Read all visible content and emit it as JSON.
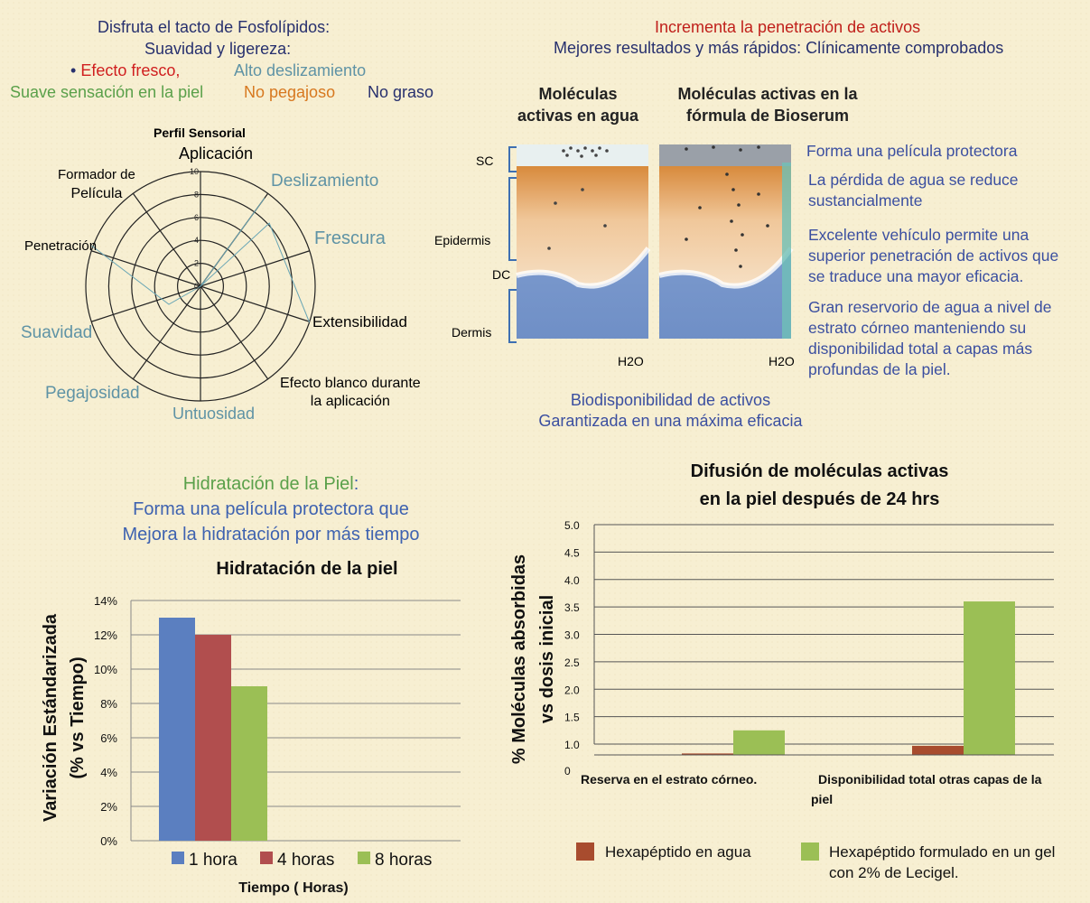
{
  "top_left": {
    "line1": "Disfruta el tacto de Fosfolípidos:",
    "line2": "Suavidad y ligereza:",
    "bullet": "•",
    "efecto": "Efecto  fresco,",
    "alto": "Alto deslizamiento",
    "suave": "Suave sensación en la piel",
    "no_pegajoso": "No pegajoso",
    "no_graso": "No graso"
  },
  "radar": {
    "title": "Perfil Sensorial",
    "ticks": [
      "0",
      "2",
      "4",
      "6",
      "8",
      "10"
    ],
    "axes": {
      "aplicacion": "Aplicación",
      "deslizamiento": "Deslizamiento",
      "frescura": "Frescura",
      "extensibilidad": "Extensibilidad",
      "efecto_blanco": [
        "Efecto blanco durante",
        "la aplicación"
      ],
      "untuosidad": "Untuosidad",
      "pegajosidad": "Pegajosidad",
      "suavidad": "Suavidad",
      "penetracion": "Penetración",
      "formador": [
        "Formador de",
        "Película"
      ]
    },
    "colors": {
      "frescura": "#5f93a5",
      "suavidad": "#5f93a5",
      "pegajosidad": "#5f93a5",
      "untuosidad": "#5f93a5",
      "deslizamiento": "#5f93a5"
    }
  },
  "top_right": {
    "line1": "Incrementa la penetración  de activos",
    "line2": "Mejores resultados y más rápidos:  Clínicamente comprobados",
    "col1": [
      "Moléculas",
      "activas en agua"
    ],
    "col2": [
      "Moléculas activas en la",
      "fórmula de Bioserum"
    ],
    "layer_sc": "SC",
    "layer_epidermis": "Epidermis",
    "layer_dc": "DC",
    "layer_dermis": "Dermis",
    "h2o_1": "H2O",
    "h2o_2": "H2O",
    "benefits": [
      [
        "Forma una película  protectora"
      ],
      [
        "La pérdida de agua se reduce",
        "sustancialmente"
      ],
      [
        "Excelente vehículo  permite una",
        "superior penetración de activos que",
        "se traduce una mayor  eficacia."
      ],
      [
        "Gran reservorio  de agua a nivel de",
        "estrato córneo  manteniendo  su",
        "disponibilidad  total a  capas más",
        "profundas de la piel."
      ]
    ],
    "bio1": "Biodisponibilidad de activos",
    "bio2": "Garantizada en una máxima eficacia"
  },
  "hydration_intro": {
    "line1": "Hidratación de la Piel",
    "colon": ":",
    "line2": "Forma una película protectora que",
    "line3": "Mejora la hidratación por más tiempo"
  },
  "chart_data": [
    {
      "type": "bar",
      "title": "Hidratación de la piel",
      "xlabel": "Tiempo ( Horas)",
      "ylabel": [
        "Variación Estándarizada",
        "(% vs Tiempo)"
      ],
      "ylim": [
        0,
        14
      ],
      "yticks": [
        "0%",
        "2%",
        "4%",
        "6%",
        "8%",
        "10%",
        "12%",
        "14%"
      ],
      "series": [
        {
          "name": "1 hora",
          "values": [
            13
          ],
          "color": "#5b7fc0"
        },
        {
          "name": "4 horas",
          "values": [
            12
          ],
          "color": "#b14e4e"
        },
        {
          "name": "8 horas",
          "values": [
            9
          ],
          "color": "#9bbf55"
        }
      ],
      "grid": true,
      "legend": "bottom"
    },
    {
      "type": "bar",
      "title": [
        "Difusión de moléculas activas",
        "en la piel después de 24 hrs"
      ],
      "ylabel": [
        "% Moléculas absorbidas",
        "vs   dosis inicial"
      ],
      "ylim": [
        0,
        5.0
      ],
      "yticks": [
        "0",
        "1.0",
        "1.5",
        "2.0",
        "2.5",
        "3.0",
        "3.5",
        "4.0",
        "4.5",
        "5.0"
      ],
      "categories": [
        "Reserva en  el estrato córneo.",
        "Disponibilidad total  otras capas de  la piel"
      ],
      "series": [
        {
          "name": "Hexapéptido en agua",
          "values": [
            0.2,
            0.85
          ],
          "color": "#a84c2e"
        },
        {
          "name": "Hexapéptido formulado en un gel con 2%  de Lecigel.",
          "values": [
            1.25,
            3.6
          ],
          "color": "#9bbf55"
        }
      ],
      "grid": true,
      "legend": "bottom"
    }
  ]
}
